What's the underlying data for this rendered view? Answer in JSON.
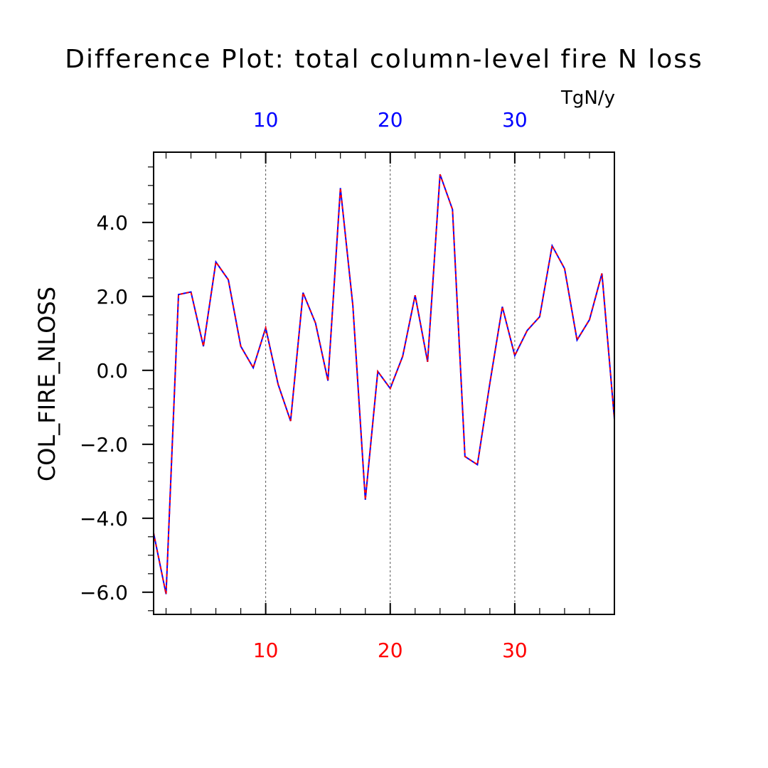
{
  "chart_data": {
    "type": "line",
    "title": "Difference Plot: total column-level fire N loss",
    "units": "TgN/y",
    "ylabel": "COL_FIRE_NLOSS",
    "xlim": [
      1,
      38
    ],
    "ylim": [
      -6.6,
      5.9
    ],
    "x_ticks": [
      "10",
      "20",
      "30"
    ],
    "y_ticks": [
      "4.0",
      "2.0",
      "0.0",
      "−2.0",
      "−4.0",
      "−6.0"
    ],
    "colors": {
      "bottom_axis": "#ff0000",
      "top_axis": "#0000ff",
      "series_a": "#0000ff",
      "series_b": "#ff0000",
      "grid": "#555555"
    },
    "grid": "vertical dashed at major x ticks",
    "x": [
      1,
      2,
      3,
      4,
      5,
      6,
      7,
      8,
      9,
      10,
      11,
      12,
      13,
      14,
      15,
      16,
      17,
      18,
      19,
      20,
      21,
      22,
      23,
      24,
      25,
      26,
      27,
      28,
      29,
      30,
      31,
      32,
      33,
      34,
      35,
      36,
      37,
      38
    ],
    "series": [
      {
        "values": [
          -4.4,
          -6.05,
          2.05,
          2.12,
          0.65,
          2.93,
          2.45,
          0.65,
          0.07,
          1.15,
          -0.38,
          -1.37,
          2.1,
          1.28,
          -0.28,
          4.93,
          1.75,
          -3.5,
          -0.03,
          -0.49,
          0.38,
          2.03,
          0.23,
          5.3,
          4.35,
          -2.33,
          -2.55,
          -0.35,
          1.72,
          0.4,
          1.08,
          1.45,
          3.37,
          2.75,
          0.82,
          1.37,
          2.62,
          -1.32
        ]
      },
      {
        "values": [
          -4.4,
          -6.05,
          2.05,
          2.12,
          0.65,
          2.93,
          2.45,
          0.65,
          0.07,
          1.15,
          -0.38,
          -1.37,
          2.1,
          1.28,
          -0.28,
          4.93,
          1.75,
          -3.5,
          -0.03,
          -0.49,
          0.38,
          2.03,
          0.23,
          5.3,
          4.35,
          -2.33,
          -2.55,
          -0.35,
          1.72,
          0.4,
          1.08,
          1.45,
          3.37,
          2.75,
          0.82,
          1.37,
          2.62,
          -1.32
        ]
      }
    ]
  }
}
